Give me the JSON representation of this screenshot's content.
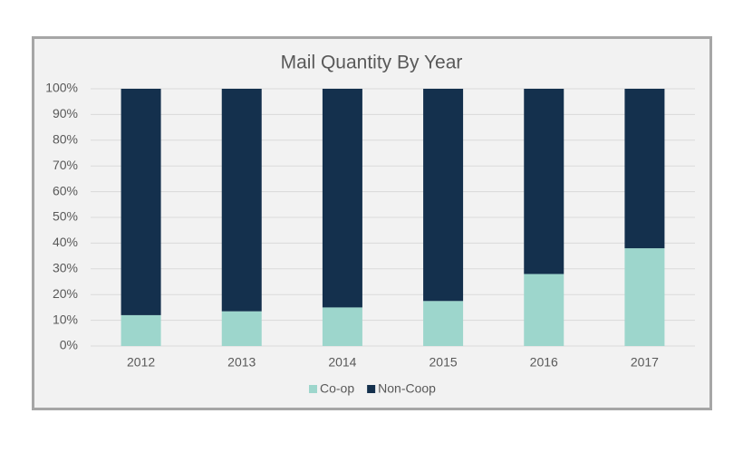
{
  "chart_data": {
    "type": "stacked-bar-100",
    "title": "Mail Quantity By Year",
    "categories": [
      "2012",
      "2013",
      "2014",
      "2015",
      "2016",
      "2017"
    ],
    "series": [
      {
        "name": "Co-op",
        "color": "#9dd6cc",
        "values": [
          12,
          13.5,
          15,
          17.5,
          28,
          38
        ]
      },
      {
        "name": "Non-Coop",
        "color": "#14304d",
        "values": [
          88,
          86.5,
          85,
          82.5,
          72,
          62
        ]
      }
    ],
    "ylim": [
      0,
      100
    ],
    "yticks": [
      {
        "value": 0,
        "label": "0%"
      },
      {
        "value": 10,
        "label": "10%"
      },
      {
        "value": 20,
        "label": "20%"
      },
      {
        "value": 30,
        "label": "30%"
      },
      {
        "value": 40,
        "label": "40%"
      },
      {
        "value": 50,
        "label": "50%"
      },
      {
        "value": 60,
        "label": "60%"
      },
      {
        "value": 70,
        "label": "70%"
      },
      {
        "value": 80,
        "label": "80%"
      },
      {
        "value": 90,
        "label": "90%"
      },
      {
        "value": 100,
        "label": "100%"
      }
    ],
    "grid": true,
    "legend": "bottom"
  }
}
